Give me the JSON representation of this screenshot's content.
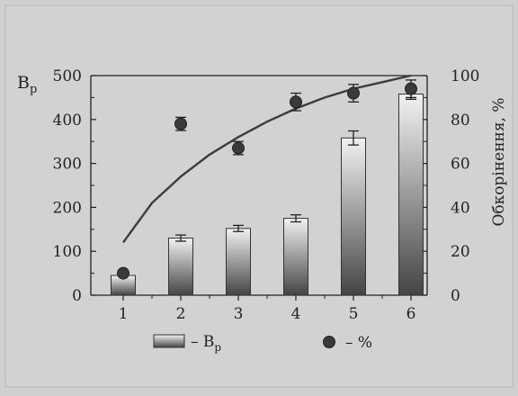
{
  "chart_data": {
    "type": "bar",
    "categories": [
      "1",
      "2",
      "3",
      "4",
      "5",
      "6"
    ],
    "series": [
      {
        "name": "Bp",
        "axis": "left",
        "values": [
          45,
          130,
          152,
          175,
          358,
          458
        ],
        "errors": [
          0,
          7,
          7,
          8,
          16,
          12
        ]
      },
      {
        "name": "%",
        "axis": "right",
        "kind": "scatter",
        "values": [
          10,
          78,
          67,
          88,
          92,
          94
        ],
        "errors": [
          0,
          3,
          3,
          4,
          4,
          4
        ]
      }
    ],
    "trend_curve": {
      "axis": "right",
      "x": [
        1,
        1.5,
        2,
        2.5,
        3,
        3.5,
        4,
        4.5,
        5,
        5.5,
        6
      ],
      "y": [
        24,
        42,
        54,
        64,
        72,
        79,
        85,
        90,
        94,
        97,
        100
      ]
    },
    "ylabel_left_main": "B",
    "ylabel_left_sub": "p",
    "ylabel_right": "Обкорінення, %",
    "ylim_left": [
      0,
      500
    ],
    "ylim_right": [
      0,
      100
    ],
    "yticks_left": [
      "0",
      "100",
      "200",
      "300",
      "400",
      "500"
    ],
    "yticks_right": [
      "0",
      "20",
      "40",
      "60",
      "80",
      "100"
    ],
    "legend": {
      "bar_label_main": "– B",
      "bar_label_sub": "p",
      "point_label": "– %"
    },
    "colors": {
      "bar_top": "#f2f2f2",
      "bar_bottom": "#444444",
      "point": "#3a3a3a",
      "curve": "#3c3c3c",
      "axis": "#222222"
    }
  }
}
